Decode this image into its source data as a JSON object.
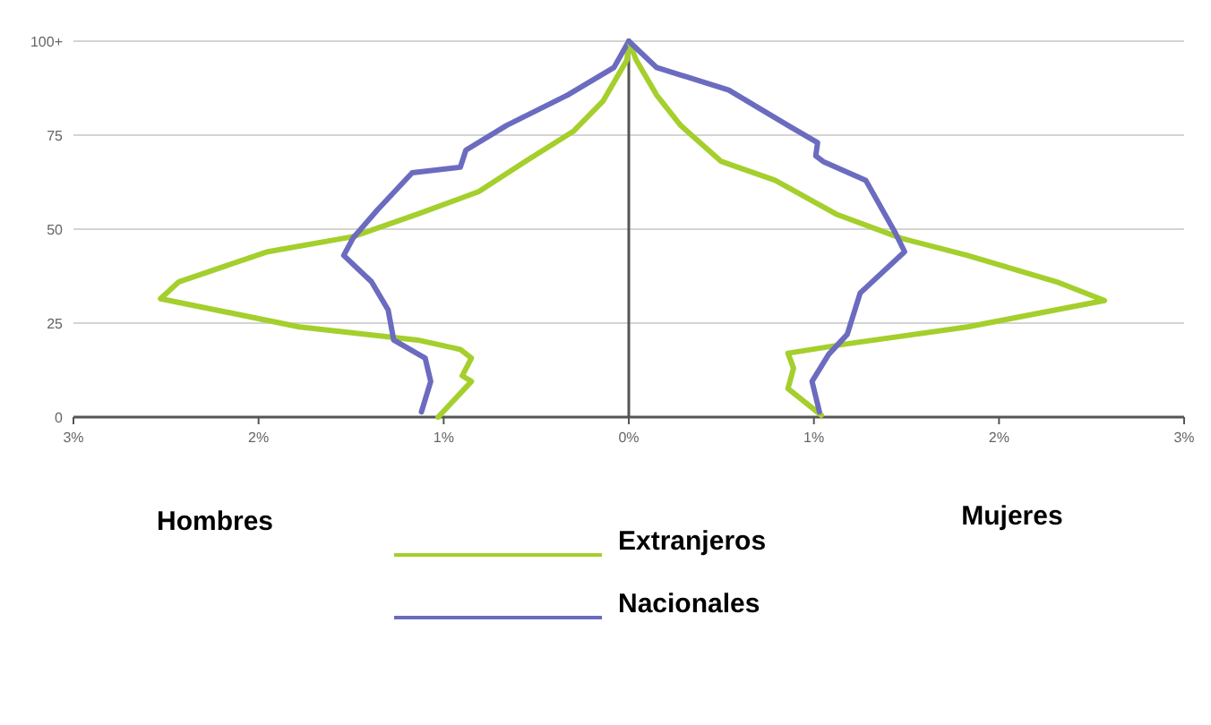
{
  "chart_data": {
    "type": "line",
    "xlim": [
      -3,
      3
    ],
    "ylim": [
      0,
      100
    ],
    "xticks": [
      {
        "value": -3,
        "label": "3%"
      },
      {
        "value": -2,
        "label": "2%"
      },
      {
        "value": -1,
        "label": "1%"
      },
      {
        "value": 0,
        "label": "0%"
      },
      {
        "value": 1,
        "label": "1%"
      },
      {
        "value": 2,
        "label": "2%"
      },
      {
        "value": 3,
        "label": "3%"
      }
    ],
    "yticks": [
      0,
      25,
      50,
      75,
      {
        "value": 100,
        "label": "100+"
      }
    ],
    "grid": "y",
    "legend": "bottom",
    "line_style": "solid",
    "marker": "none",
    "ref_lines": [
      {
        "axis": "x",
        "value": 0,
        "color": "#555555"
      }
    ],
    "annotations": [
      "Hombres",
      "Mujeres"
    ],
    "series": [
      {
        "name": "Extranjeros",
        "color": "#a4cf2c",
        "x": [
          -1.03,
          -0.85,
          -0.9,
          -0.85,
          -0.91,
          -1.14,
          -1.78,
          -2.53,
          -2.43,
          -1.95,
          -1.49,
          -1.14,
          -0.81,
          -0.56,
          -0.3,
          -0.14,
          -0.01,
          0
        ],
        "values": [
          0,
          9.5,
          11,
          15.7,
          18,
          20.5,
          24,
          31.5,
          36,
          44,
          48,
          54,
          60,
          68,
          76,
          84,
          95,
          100
        ]
      },
      {
        "name": "Nacionales",
        "color": "#6b6bc0",
        "x": [
          -1.12,
          -1.07,
          -1.1,
          -1.27,
          -1.3,
          -1.39,
          -1.54,
          -1.49,
          -1.36,
          -1.17,
          -0.91,
          -0.88,
          -0.66,
          -0.33,
          -0.08,
          0
        ],
        "values": [
          1.4,
          9.5,
          15.7,
          20.5,
          28.5,
          36,
          43,
          47.6,
          55,
          65,
          66.5,
          71,
          77.6,
          85.7,
          93,
          100
        ]
      },
      {
        "color": "#a4cf2c",
        "x": [
          1.04,
          0.86,
          0.89,
          0.86,
          1.18,
          1.83,
          2.57,
          2.31,
          1.83,
          1.47,
          1.12,
          0.79,
          0.5,
          0.28,
          0.15,
          0.04,
          0
        ],
        "values": [
          0.5,
          7.6,
          13,
          17,
          19.5,
          24,
          31,
          36,
          43,
          47.6,
          54,
          63,
          68,
          77.6,
          85.7,
          95,
          100
        ]
      },
      {
        "color": "#6b6bc0",
        "x": [
          1.03,
          0.99,
          1.08,
          1.18,
          1.25,
          1.49,
          1.44,
          1.28,
          1.05,
          1.01,
          1.02,
          0.86,
          0.54,
          0.15,
          0
        ],
        "values": [
          1.4,
          9.5,
          16.7,
          22,
          33,
          44,
          49,
          63,
          68,
          69.5,
          73,
          77.6,
          87,
          93,
          100
        ]
      }
    ]
  }
}
